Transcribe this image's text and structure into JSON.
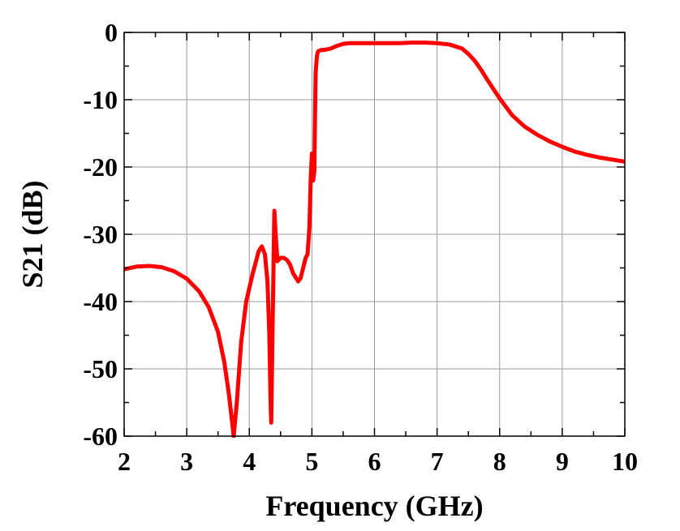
{
  "chart_data": {
    "type": "line",
    "title": "",
    "xlabel": "Frequency (GHz)",
    "ylabel": "S21 (dB)",
    "xlim": [
      2,
      10
    ],
    "ylim": [
      -60,
      0
    ],
    "xticks": [
      2,
      3,
      4,
      5,
      6,
      7,
      8,
      9,
      10
    ],
    "yticks": [
      0,
      -10,
      -20,
      -30,
      -40,
      -50,
      -60
    ],
    "xtick_labels": [
      "2",
      "3",
      "4",
      "5",
      "6",
      "7",
      "8",
      "9",
      "10"
    ],
    "ytick_labels": [
      "0",
      "-10",
      "-20",
      "-30",
      "-40",
      "-50",
      "-60"
    ],
    "grid": true,
    "legend": "none",
    "series": [
      {
        "name": "S21",
        "color": "#ff0000",
        "x": [
          2.0,
          2.2,
          2.4,
          2.6,
          2.8,
          3.0,
          3.2,
          3.35,
          3.5,
          3.6,
          3.67,
          3.72,
          3.75,
          3.8,
          3.87,
          3.95,
          4.05,
          4.15,
          4.2,
          4.25,
          4.29,
          4.32,
          4.34,
          4.35,
          4.37,
          4.4,
          4.42,
          4.45,
          4.5,
          4.55,
          4.6,
          4.65,
          4.7,
          4.78,
          4.82,
          4.86,
          4.9,
          4.93,
          4.96,
          4.98,
          5.0,
          5.02,
          5.04,
          5.05,
          5.06,
          5.08,
          5.1,
          5.15,
          5.2,
          5.3,
          5.4,
          5.5,
          5.6,
          5.8,
          6.0,
          6.2,
          6.4,
          6.6,
          6.8,
          7.0,
          7.2,
          7.4,
          7.5,
          7.6,
          7.7,
          7.8,
          8.0,
          8.2,
          8.4,
          8.6,
          8.8,
          9.0,
          9.2,
          9.4,
          9.6,
          9.8,
          10.0
        ],
        "y": [
          -35.2,
          -34.8,
          -34.7,
          -34.9,
          -35.5,
          -36.6,
          -38.5,
          -40.8,
          -44.5,
          -49.0,
          -53.5,
          -57.5,
          -60.0,
          -55.0,
          -46.0,
          -40.0,
          -36.0,
          -32.5,
          -31.8,
          -33.0,
          -37.0,
          -45.0,
          -55.0,
          -58.0,
          -45.0,
          -26.5,
          -30.0,
          -34.0,
          -33.5,
          -33.5,
          -33.8,
          -34.5,
          -35.8,
          -37.0,
          -36.5,
          -35.0,
          -33.5,
          -33.0,
          -29.0,
          -22.0,
          -18.0,
          -22.0,
          -20.5,
          -12.0,
          -6.0,
          -3.5,
          -2.8,
          -2.6,
          -2.6,
          -2.4,
          -2.0,
          -1.7,
          -1.6,
          -1.6,
          -1.6,
          -1.6,
          -1.6,
          -1.5,
          -1.5,
          -1.6,
          -1.8,
          -2.4,
          -3.2,
          -4.2,
          -5.5,
          -7.0,
          -9.8,
          -12.3,
          -14.0,
          -15.2,
          -16.2,
          -17.0,
          -17.7,
          -18.2,
          -18.6,
          -18.9,
          -19.2
        ]
      }
    ]
  }
}
